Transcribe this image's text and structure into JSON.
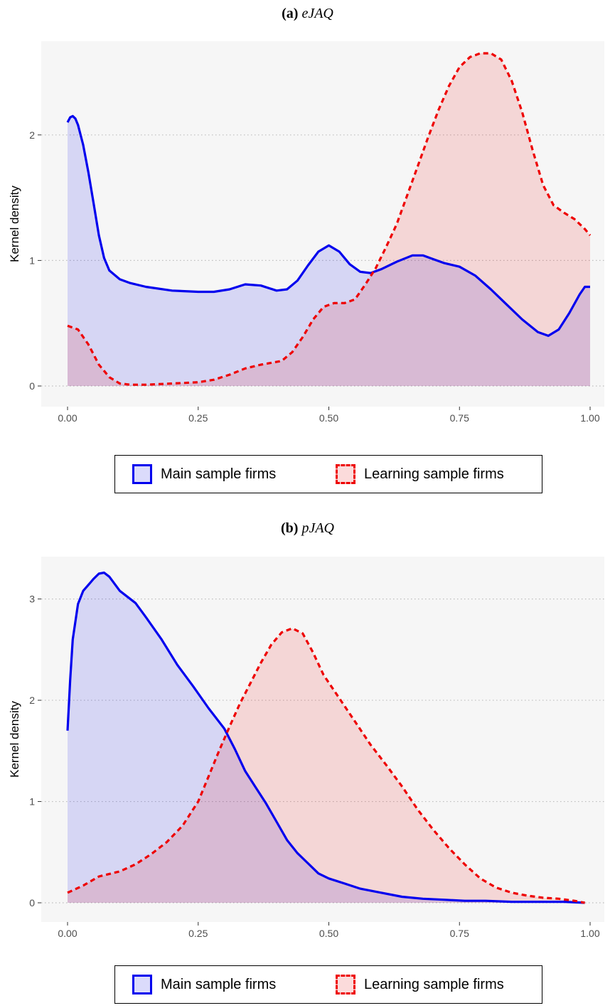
{
  "chart_data": [
    {
      "type": "area",
      "panel_label": "(a)",
      "panel_var": "eJAQ",
      "xlabel": "",
      "ylabel": "Kernel density",
      "xlim": [
        0,
        1
      ],
      "ylim": [
        0,
        2.65
      ],
      "x_ticks": [
        "0.00",
        "0.25",
        "0.50",
        "0.75",
        "1.00"
      ],
      "y_ticks": [
        "0",
        "1",
        "2"
      ],
      "grid": "horizontal dotted",
      "legend_position": "bottom",
      "series": [
        {
          "name": "Main sample firms",
          "color": "#0000ee",
          "line": "solid",
          "x": [
            0.0,
            0.005,
            0.01,
            0.015,
            0.02,
            0.03,
            0.04,
            0.05,
            0.06,
            0.07,
            0.08,
            0.1,
            0.12,
            0.15,
            0.2,
            0.25,
            0.28,
            0.31,
            0.34,
            0.37,
            0.4,
            0.42,
            0.44,
            0.46,
            0.48,
            0.5,
            0.52,
            0.54,
            0.56,
            0.58,
            0.6,
            0.63,
            0.66,
            0.68,
            0.7,
            0.72,
            0.75,
            0.78,
            0.81,
            0.84,
            0.87,
            0.9,
            0.92,
            0.94,
            0.96,
            0.98,
            0.99,
            1.0
          ],
          "y": [
            2.1,
            2.14,
            2.15,
            2.13,
            2.08,
            1.92,
            1.7,
            1.45,
            1.2,
            1.02,
            0.92,
            0.85,
            0.82,
            0.79,
            0.76,
            0.75,
            0.75,
            0.77,
            0.81,
            0.8,
            0.76,
            0.77,
            0.84,
            0.96,
            1.07,
            1.12,
            1.07,
            0.97,
            0.91,
            0.9,
            0.93,
            0.99,
            1.04,
            1.04,
            1.01,
            0.98,
            0.95,
            0.88,
            0.77,
            0.65,
            0.53,
            0.43,
            0.4,
            0.45,
            0.58,
            0.73,
            0.79,
            0.79
          ]
        },
        {
          "name": "Learning sample firms",
          "color": "#ee0000",
          "line": "dashed",
          "x": [
            0.0,
            0.02,
            0.04,
            0.06,
            0.08,
            0.1,
            0.12,
            0.15,
            0.2,
            0.25,
            0.28,
            0.31,
            0.34,
            0.37,
            0.41,
            0.43,
            0.45,
            0.47,
            0.49,
            0.51,
            0.53,
            0.55,
            0.57,
            0.59,
            0.61,
            0.63,
            0.65,
            0.67,
            0.69,
            0.71,
            0.73,
            0.75,
            0.77,
            0.79,
            0.81,
            0.83,
            0.85,
            0.87,
            0.89,
            0.91,
            0.93,
            0.95,
            0.97,
            0.99,
            1.0
          ],
          "y": [
            0.48,
            0.45,
            0.33,
            0.17,
            0.07,
            0.02,
            0.01,
            0.01,
            0.02,
            0.03,
            0.05,
            0.09,
            0.14,
            0.17,
            0.2,
            0.27,
            0.39,
            0.53,
            0.63,
            0.66,
            0.66,
            0.69,
            0.81,
            0.94,
            1.11,
            1.29,
            1.52,
            1.75,
            1.98,
            2.2,
            2.39,
            2.54,
            2.62,
            2.65,
            2.65,
            2.6,
            2.43,
            2.18,
            1.88,
            1.6,
            1.44,
            1.38,
            1.33,
            1.25,
            1.2
          ]
        }
      ]
    },
    {
      "type": "area",
      "panel_label": "(b)",
      "panel_var": "pJAQ",
      "xlabel": "",
      "ylabel": "Kernel density",
      "xlim": [
        0,
        1
      ],
      "ylim": [
        0,
        3.25
      ],
      "x_ticks": [
        "0.00",
        "0.25",
        "0.50",
        "0.75",
        "1.00"
      ],
      "y_ticks": [
        "0",
        "1",
        "2",
        "3"
      ],
      "grid": "horizontal dotted",
      "legend_position": "bottom",
      "series": [
        {
          "name": "Main sample firms",
          "color": "#0000ee",
          "line": "solid",
          "x": [
            0.0,
            0.005,
            0.01,
            0.02,
            0.03,
            0.04,
            0.05,
            0.06,
            0.07,
            0.08,
            0.1,
            0.13,
            0.15,
            0.18,
            0.21,
            0.24,
            0.27,
            0.3,
            0.32,
            0.34,
            0.36,
            0.38,
            0.4,
            0.42,
            0.44,
            0.46,
            0.48,
            0.5,
            0.53,
            0.56,
            0.6,
            0.64,
            0.68,
            0.72,
            0.76,
            0.8,
            0.85,
            0.9,
            0.95,
            0.99
          ],
          "y": [
            1.7,
            2.2,
            2.6,
            2.95,
            3.08,
            3.14,
            3.2,
            3.25,
            3.26,
            3.22,
            3.08,
            2.96,
            2.82,
            2.6,
            2.35,
            2.14,
            1.92,
            1.72,
            1.52,
            1.3,
            1.14,
            0.98,
            0.8,
            0.62,
            0.49,
            0.39,
            0.29,
            0.24,
            0.19,
            0.14,
            0.1,
            0.06,
            0.04,
            0.03,
            0.02,
            0.02,
            0.01,
            0.01,
            0.01,
            0.0
          ]
        },
        {
          "name": "Learning sample firms",
          "color": "#ee0000",
          "line": "dashed",
          "x": [
            0.0,
            0.03,
            0.06,
            0.1,
            0.13,
            0.16,
            0.19,
            0.22,
            0.25,
            0.27,
            0.29,
            0.31,
            0.33,
            0.35,
            0.37,
            0.39,
            0.41,
            0.43,
            0.45,
            0.47,
            0.49,
            0.52,
            0.55,
            0.58,
            0.61,
            0.64,
            0.67,
            0.7,
            0.73,
            0.76,
            0.79,
            0.82,
            0.85,
            0.88,
            0.91,
            0.94,
            0.97,
            0.99
          ],
          "y": [
            0.1,
            0.17,
            0.26,
            0.31,
            0.38,
            0.48,
            0.6,
            0.76,
            1.0,
            1.25,
            1.5,
            1.74,
            1.97,
            2.17,
            2.37,
            2.55,
            2.67,
            2.71,
            2.66,
            2.47,
            2.25,
            2.02,
            1.79,
            1.56,
            1.36,
            1.15,
            0.92,
            0.72,
            0.54,
            0.38,
            0.24,
            0.15,
            0.1,
            0.07,
            0.05,
            0.04,
            0.02,
            0.0
          ]
        }
      ]
    }
  ],
  "legends": [
    {
      "main_label": "Main sample firms",
      "learning_label": "Learning sample firms"
    },
    {
      "main_label": "Main sample firms",
      "learning_label": "Learning sample firms"
    }
  ]
}
